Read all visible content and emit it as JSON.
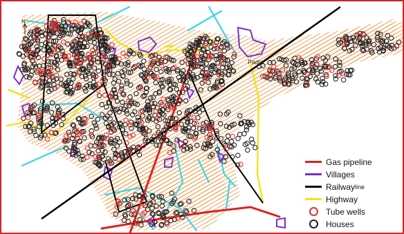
{
  "map": {
    "north_label": "N",
    "place_label": "Padra",
    "border_color": "#d92222",
    "colors": {
      "cultivation_hatch": "#f08a2c",
      "gas_pipeline": "#e02020",
      "villages": "#7a2fc9",
      "railway": "#000000",
      "highway": "#f2e21a",
      "canal": "#38d4e6",
      "tube_wells": "#e03030",
      "houses": "#222222"
    }
  },
  "legend": {
    "items": [
      {
        "label": "Gas pipeline",
        "suffix": "",
        "symbol": "line",
        "color": "#e02020"
      },
      {
        "label": "Villages",
        "suffix": "",
        "symbol": "line",
        "color": "#7a2fc9"
      },
      {
        "label": "Railway",
        "suffix": "line",
        "symbol": "line",
        "color": "#000000"
      },
      {
        "label": "Highway",
        "suffix": "",
        "symbol": "line",
        "color": "#f2e21a"
      },
      {
        "label": "Tube wells",
        "suffix": "",
        "symbol": "ring",
        "color": "#e03030"
      },
      {
        "label": "Houses",
        "suffix": "",
        "symbol": "ring",
        "color": "#222222"
      }
    ]
  }
}
